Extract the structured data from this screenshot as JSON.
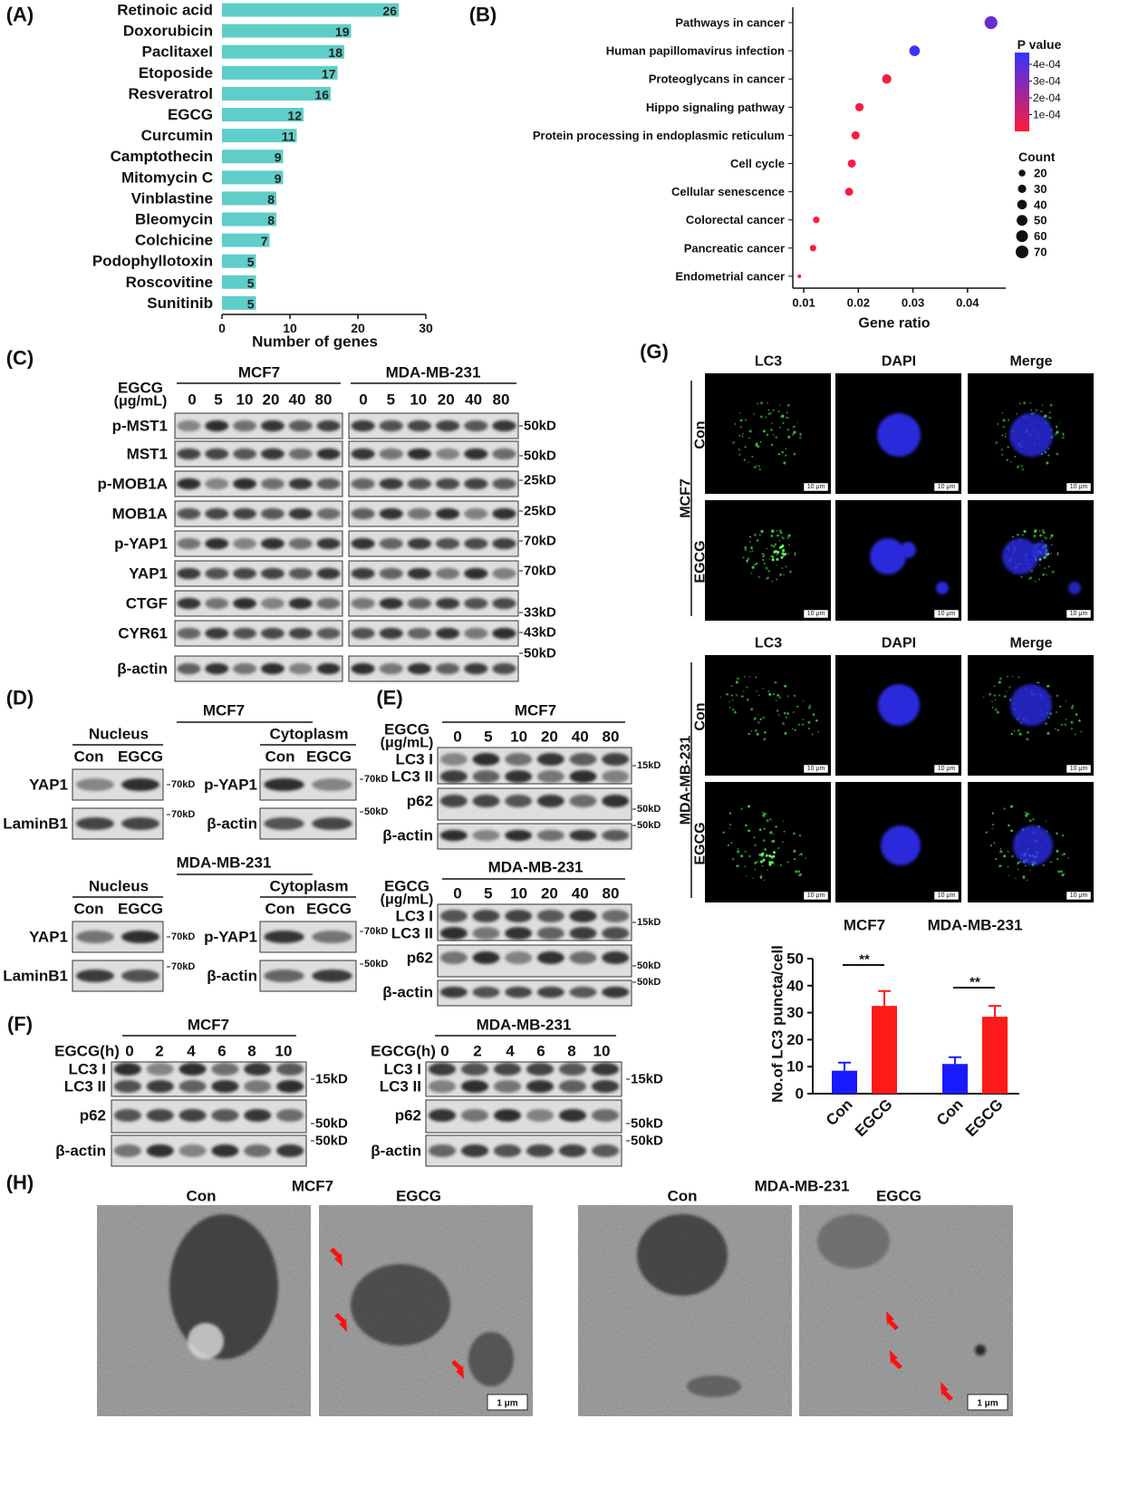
{
  "panel_labels": [
    "(A)",
    "(B)",
    "(C)",
    "(D)",
    "(E)",
    "(F)",
    "(G)",
    "(H)"
  ],
  "chart_data": [
    {
      "type": "barh",
      "categories": [
        "Retinoic acid",
        "Doxorubicin",
        "Paclitaxel",
        "Etoposide",
        "Resveratrol",
        "EGCG",
        "Curcumin",
        "Camptothecin",
        "Mitomycin C",
        "Vinblastine",
        "Bleomycin",
        "Colchicine",
        "Podophyllotoxin",
        "Roscovitine",
        "Sunitinib"
      ],
      "values": [
        26,
        19,
        18,
        17,
        16,
        12,
        11,
        9,
        9,
        8,
        8,
        7,
        5,
        5,
        5
      ],
      "color": "#5fcdc8",
      "xlabel": "Number of genes",
      "xlim": [
        0,
        30
      ],
      "xticks": [
        0,
        10,
        20,
        30
      ]
    },
    {
      "type": "dot",
      "categories": [
        "Pathways in cancer",
        "Human papillomavirus infection",
        "Proteoglycans in cancer",
        "Hippo signaling pathway",
        "Protein processing in endoplasmic reticulum",
        "Cell cycle",
        "Cellular senescence",
        "Colorectal cancer",
        "Pancreatic cancer",
        "Endometrial cancer"
      ],
      "values": [
        0.0443,
        0.0303,
        0.0252,
        0.0202,
        0.0195,
        0.0188,
        0.0183,
        0.0123,
        0.0117,
        0.0092
      ],
      "sizes": [
        72,
        48,
        38,
        30,
        29,
        28,
        28,
        19,
        18,
        6
      ],
      "p_values": [
        0.00035,
        0.00045,
        1e-05,
        1e-05,
        1e-05,
        1e-05,
        1e-05,
        1e-05,
        1e-05,
        1e-05
      ],
      "xlabel": "Gene ratio",
      "xlim": [
        0.008,
        0.047
      ],
      "xticks": [
        0.01,
        0.02,
        0.03,
        0.04
      ],
      "color_title": "P value",
      "color_lim": [
        0,
        0.00047
      ],
      "colors": [
        "#ff1a3c",
        "#3434ff"
      ],
      "color_ticks": [
        {
          "value": 0.0004,
          "label": "4e-04"
        },
        {
          "value": 0.0003,
          "label": "3e-04"
        },
        {
          "value": 0.0002,
          "label": "2e-04"
        },
        {
          "value": 0.0001,
          "label": "1e-04"
        }
      ],
      "size_title": "Count",
      "size_ticks": [
        20,
        30,
        40,
        50,
        60,
        70
      ]
    },
    {
      "type": "grouped_bar",
      "categories": [
        "MCF7",
        "MDA-MB-231"
      ],
      "series": [
        {
          "name": "Con",
          "color": "#1a1aff",
          "values": [
            8.5,
            11
          ],
          "errors": [
            3,
            2.5
          ]
        },
        {
          "name": "EGCG",
          "color": "#ff1a1a",
          "values": [
            32.5,
            28.5
          ],
          "errors": [
            5.5,
            4
          ]
        }
      ],
      "ylabel": "No.of LC3 puncta/cell",
      "ylim": [
        0,
        50
      ],
      "yticks": [
        0,
        10,
        20,
        30,
        40,
        50
      ],
      "annotations": [
        "**",
        "**"
      ]
    }
  ],
  "panel_C": {
    "treatment": [
      "EGCG",
      "(μg/mL)"
    ],
    "doses": [
      0,
      5,
      10,
      20,
      40,
      80
    ],
    "cell_lines": [
      "MCF7",
      "MDA-MB-231"
    ],
    "rows": [
      {
        "protein": "p-MST1",
        "marker": "50kD"
      },
      {
        "protein": "MST1",
        "marker": "50kD"
      },
      {
        "protein": "p-MOB1A",
        "marker": "25kD"
      },
      {
        "protein": "MOB1A",
        "marker": "25kD"
      },
      {
        "protein": "p-YAP1",
        "marker": "70kD"
      },
      {
        "protein": "YAP1",
        "marker": "70kD"
      },
      {
        "protein": "CTGF",
        "marker": "33kD"
      },
      {
        "protein": "CYR61",
        "marker": "43kD"
      },
      {
        "protein": "β-actin",
        "marker": "50kD"
      }
    ]
  },
  "panel_D": {
    "blocks": [
      {
        "cell_line": "MCF7",
        "fractions": [
          {
            "name": "Nucleus",
            "groups": [
              "Con",
              "EGCG"
            ],
            "rows": [
              {
                "protein": "YAP1",
                "marker": "70kD"
              },
              {
                "protein": "LaminB1",
                "marker": "70kD"
              }
            ]
          },
          {
            "name": "Cytoplasm",
            "groups": [
              "Con",
              "EGCG"
            ],
            "rows": [
              {
                "protein": "p-YAP1",
                "marker": "70kD"
              },
              {
                "protein": "β-actin",
                "marker": "50kD"
              }
            ]
          }
        ]
      },
      {
        "cell_line": "MDA-MB-231",
        "fractions": [
          {
            "name": "Nucleus",
            "groups": [
              "Con",
              "EGCG"
            ],
            "rows": [
              {
                "protein": "YAP1",
                "marker": "70kD"
              },
              {
                "protein": "LaminB1",
                "marker": "70kD"
              }
            ]
          },
          {
            "name": "Cytoplasm",
            "groups": [
              "Con",
              "EGCG"
            ],
            "rows": [
              {
                "protein": "p-YAP1",
                "marker": "70kD"
              },
              {
                "protein": "β-actin",
                "marker": "50kD"
              }
            ]
          }
        ]
      }
    ]
  },
  "panel_E": {
    "treatment": [
      "EGCG",
      "(μg/mL)"
    ],
    "doses": [
      0,
      5,
      10,
      20,
      40,
      80
    ],
    "blocks": [
      {
        "cell_line": "MCF7",
        "rows": [
          {
            "proteins": [
              "LC3 I",
              "LC3 II"
            ],
            "marker": "15kD"
          },
          {
            "proteins": [
              "p62"
            ],
            "marker": "50kD"
          },
          {
            "proteins": [
              "β-actin"
            ],
            "marker": "50kD"
          }
        ]
      },
      {
        "cell_line": "MDA-MB-231",
        "rows": [
          {
            "proteins": [
              "LC3 I",
              "LC3 II"
            ],
            "marker": "15kD"
          },
          {
            "proteins": [
              "p62"
            ],
            "marker": "50kD"
          },
          {
            "proteins": [
              "β-actin"
            ],
            "marker": "50kD"
          }
        ]
      }
    ]
  },
  "panel_F": {
    "treatment": "EGCG(h)",
    "hours": [
      0,
      2,
      4,
      6,
      8,
      10
    ],
    "blocks": [
      {
        "cell_line": "MCF7",
        "rows": [
          {
            "proteins": [
              "LC3 I",
              "LC3 II"
            ],
            "marker": "15kD"
          },
          {
            "proteins": [
              "p62"
            ],
            "marker": "50kD"
          },
          {
            "proteins": [
              "β-actin"
            ],
            "marker": "50kD"
          }
        ]
      },
      {
        "cell_line": "MDA-MB-231",
        "rows": [
          {
            "proteins": [
              "LC3 I",
              "LC3 II"
            ],
            "marker": "15kD"
          },
          {
            "proteins": [
              "p62"
            ],
            "marker": "50kD"
          },
          {
            "proteins": [
              "β-actin"
            ],
            "marker": "50kD"
          }
        ]
      }
    ]
  },
  "panel_G": {
    "channels": [
      "LC3",
      "DAPI",
      "Merge"
    ],
    "cell_lines": [
      "MCF7",
      "MDA-MB-231"
    ],
    "conditions": [
      "Con",
      "EGCG"
    ],
    "scale_bar": "10 μm"
  },
  "panel_H": {
    "cell_lines": [
      "MCF7",
      "MDA-MB-231"
    ],
    "conditions": [
      "Con",
      "EGCG"
    ],
    "scale_bar": "1 μm"
  }
}
